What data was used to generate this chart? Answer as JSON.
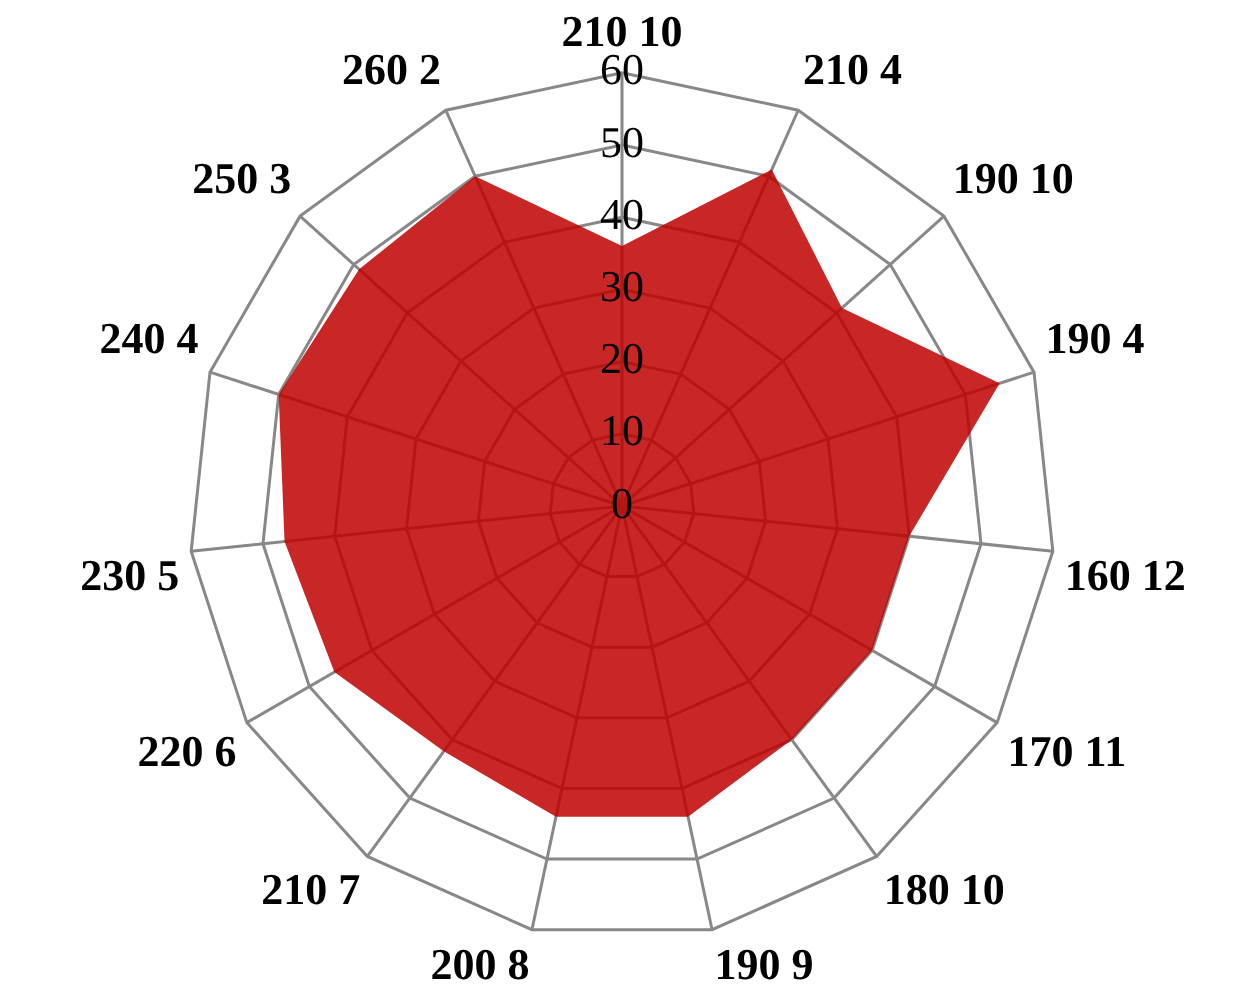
{
  "chart_data": {
    "type": "radar",
    "categories": [
      "210 10",
      "210 4",
      "190 10",
      "190 4",
      "160 12",
      "170 11",
      "180 10",
      "190 9",
      "200 8",
      "210 7",
      "220 6",
      "230 5",
      "240 4",
      "250 3",
      "260 2"
    ],
    "series": [
      {
        "color": "#c00000",
        "values": [
          36,
          51,
          41,
          55,
          40,
          40,
          40,
          44,
          44,
          42,
          46,
          47,
          50,
          49,
          50
        ]
      }
    ],
    "ylim": [
      0,
      60
    ],
    "yticks": [
      0,
      10,
      20,
      30,
      40,
      50,
      60
    ],
    "grid": true,
    "legend": false,
    "marker": "none"
  }
}
